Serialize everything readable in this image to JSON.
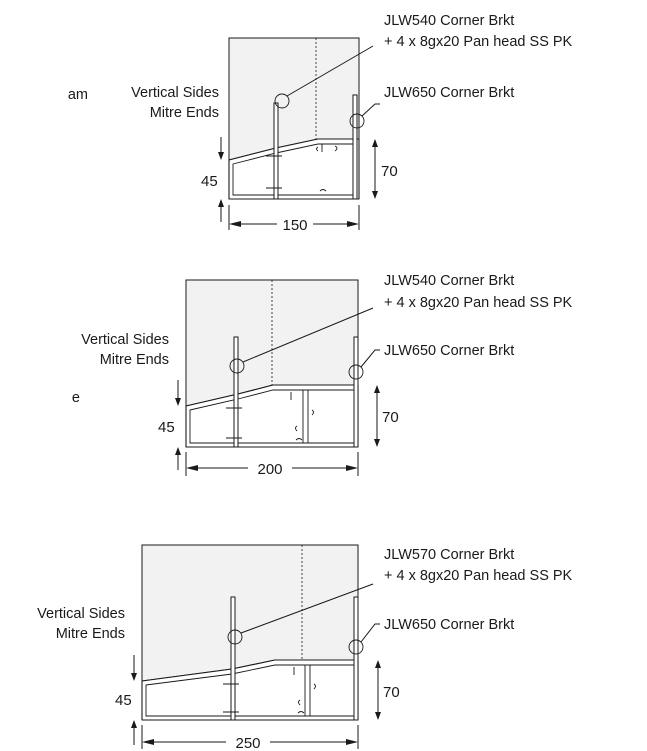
{
  "page": {
    "partial_text_1": "am",
    "partial_text_2": "e"
  },
  "details": [
    {
      "side_label_line1": "Vertical Sides",
      "side_label_line2": "Mitre Ends",
      "callout_top_line1": "JLW540 Corner Brkt",
      "callout_top_line2": "+ 4 x 8gx20 Pan head SS PK",
      "callout_right": "JLW650 Corner Brkt",
      "dim_low_height": "45",
      "dim_high_height": "70",
      "dim_width": "150"
    },
    {
      "side_label_line1": "Vertical Sides",
      "side_label_line2": "Mitre Ends",
      "callout_top_line1": "JLW540 Corner Brkt",
      "callout_top_line2": "+ 4 x 8gx20 Pan head SS PK",
      "callout_right": "JLW650 Corner Brkt",
      "dim_low_height": "45",
      "dim_high_height": "70",
      "dim_width": "200"
    },
    {
      "side_label_line1": "Vertical Sides",
      "side_label_line2": "Mitre Ends",
      "callout_top_line1": "JLW570 Corner Brkt",
      "callout_top_line2": "+ 4 x 8gx20 Pan head SS PK",
      "callout_right": "JLW650 Corner Brkt",
      "dim_low_height": "45",
      "dim_high_height": "70",
      "dim_width": "250"
    }
  ]
}
